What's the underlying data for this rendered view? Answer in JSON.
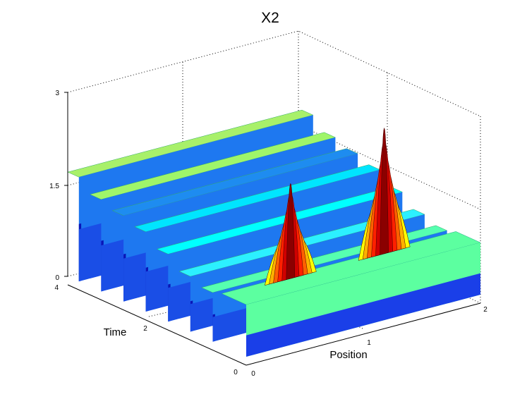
{
  "chart_data": {
    "type": "surface",
    "title": "X2",
    "xlabel": "Position",
    "ylabel": "Time",
    "zlabel": "",
    "xlim": [
      0,
      2
    ],
    "ylim": [
      0,
      4
    ],
    "zlim": [
      0,
      3
    ],
    "xticks": [
      "0",
      "1",
      "2"
    ],
    "yticks": [
      "0",
      "2",
      "4"
    ],
    "zticks": [
      "0",
      "1.5",
      "3"
    ],
    "colormap": "jet",
    "grid": true,
    "ridges": [
      {
        "time": 4.0,
        "level": 1.7,
        "color": "#a8f06a"
      },
      {
        "time": 3.5,
        "level": 1.5,
        "color": "#9ff56a"
      },
      {
        "time": 3.0,
        "level": 1.4,
        "color": "#1e8cf0"
      },
      {
        "time": 2.5,
        "level": 1.3,
        "color": "#00e5ff"
      },
      {
        "time": 2.0,
        "level": 1.1,
        "color": "#00ffff"
      },
      {
        "time": 1.5,
        "level": 0.9,
        "color": "#2cf0ff"
      },
      {
        "time": 1.0,
        "level": 0.8,
        "color": "#56ffb0"
      }
    ],
    "peaks": [
      {
        "position": 0.55,
        "height": 2.4
      },
      {
        "position": 1.35,
        "height": 2.9
      }
    ]
  }
}
